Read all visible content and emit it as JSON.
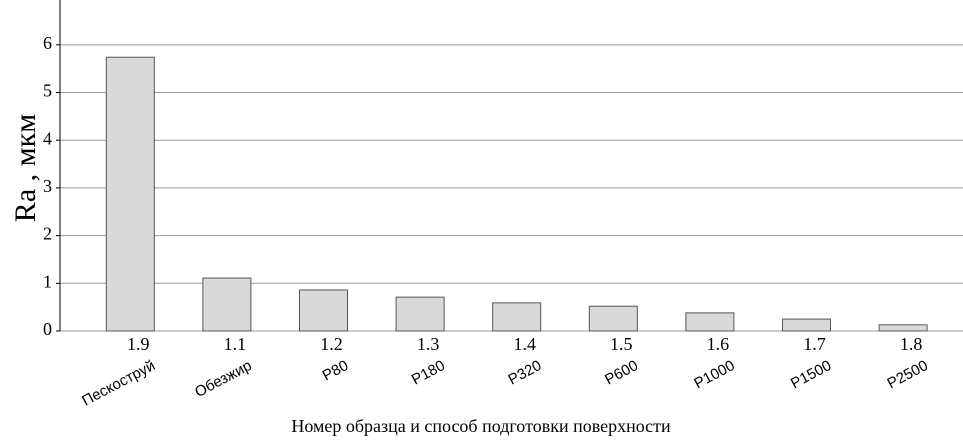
{
  "chart_data": {
    "type": "bar",
    "y_label": "Ra , мкм",
    "x_label": "Номер образца и способ подготовки поверхности",
    "categories": [
      "1.9",
      "1.1",
      "1.2",
      "1.3",
      "1.4",
      "1.5",
      "1.6",
      "1.7",
      "1.8"
    ],
    "methods": [
      "Пескоструй",
      "Обезжир",
      "P80",
      "P180",
      "P320",
      "P600",
      "P1000",
      "P1500",
      "P2500"
    ],
    "values": [
      5.74,
      1.11,
      0.86,
      0.71,
      0.59,
      0.52,
      0.38,
      0.25,
      0.13
    ],
    "color": "#d9d9d9",
    "ylim": [
      0,
      6.94
    ],
    "yticks": [
      0,
      1,
      2,
      3,
      4,
      5,
      6
    ],
    "grid": true
  }
}
